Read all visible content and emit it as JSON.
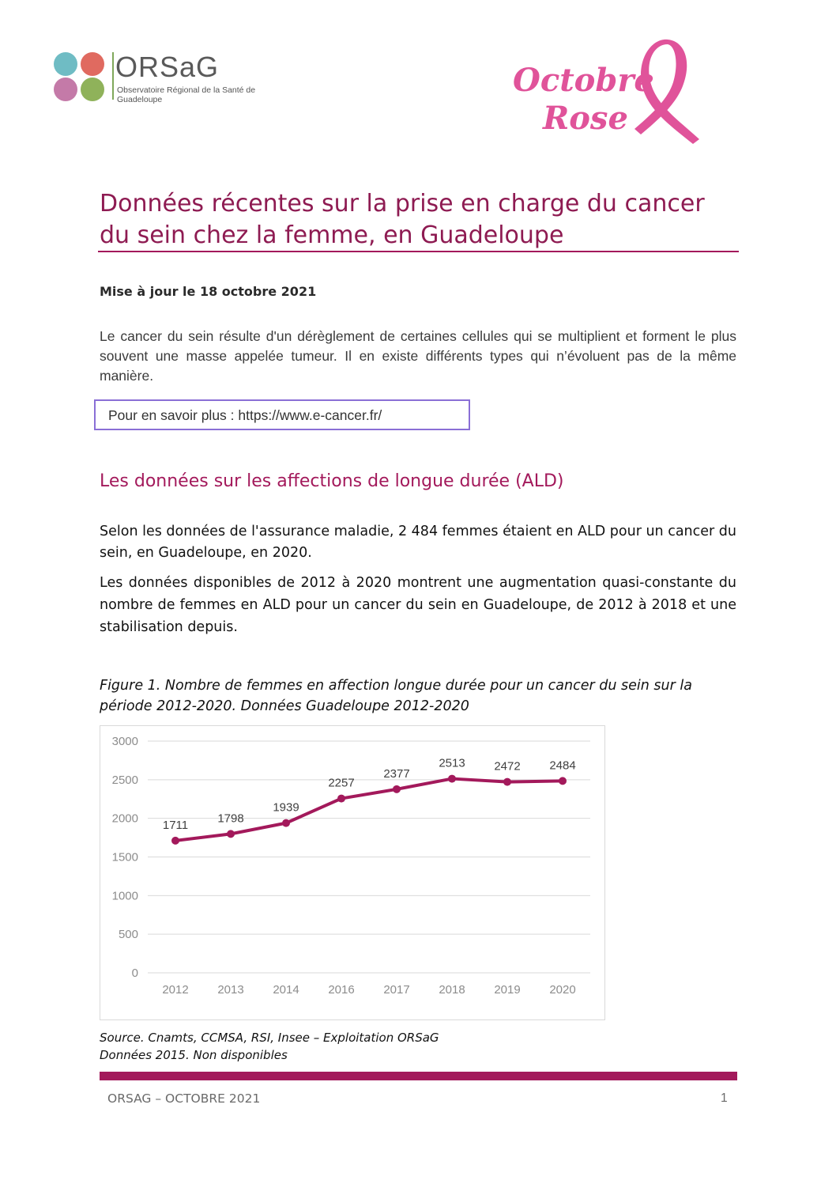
{
  "header": {
    "orsag_logo_text": "ORSaG",
    "orsag_logo_subtitle": "Observatoire Régional de la Santé de Guadeloupe",
    "octobre_rose_line1": "Octobre",
    "octobre_rose_line2": "Rose"
  },
  "title": "Données récentes sur la prise en charge du cancer du sein chez la femme, en Guadeloupe",
  "update_line": "Mise à jour le 18 octobre 2021",
  "intro": "Le cancer du sein résulte d'un dérèglement de certaines cellules qui se multiplient et forment le plus souvent une masse appelée tumeur. Il en existe différents types qui n’évoluent pas de la même manière.",
  "link_box": "Pour en savoir plus : https://www.e-cancer.fr/",
  "section_heading": "Les données sur les affections de longue durée (ALD)",
  "paragraph1": "Selon les données de l'assurance maladie, 2 484 femmes étaient en ALD pour un cancer du sein, en Guadeloupe, en 2020.",
  "paragraph2": "Les données disponibles de 2012 à 2020 montrent une augmentation quasi-constante du nombre de femmes en ALD pour un cancer du sein en Guadeloupe, de 2012 à 2018 et une stabilisation depuis.",
  "figure_caption": "Figure 1. Nombre de femmes en affection longue durée pour un cancer du sein sur la période 2012-2020. Données Guadeloupe 2012-2020",
  "chart_data": {
    "type": "line",
    "categories": [
      "2012",
      "2013",
      "2014",
      "2016",
      "2017",
      "2018",
      "2019",
      "2020"
    ],
    "values": [
      1711,
      1798,
      1939,
      2257,
      2377,
      2513,
      2472,
      2484
    ],
    "y_ticks": [
      "0",
      "500",
      "1000",
      "1500",
      "2000",
      "2500",
      "3000"
    ],
    "ylim": [
      0,
      3000
    ],
    "grid": true,
    "data_labels": true,
    "line_color": "#a3195b"
  },
  "source_line1": "Source. Cnamts, CCMSA, RSI, Insee – Exploitation ORSaG",
  "source_line2": "Données 2015. Non disponibles",
  "footer": {
    "left": "ORSAG – OCTOBRE 2021",
    "page_number": "1"
  },
  "colors": {
    "accent": "#a3195b",
    "title": "#8e1b52",
    "link_border": "#8a6fd6",
    "rose_pink": "#e0539a"
  }
}
